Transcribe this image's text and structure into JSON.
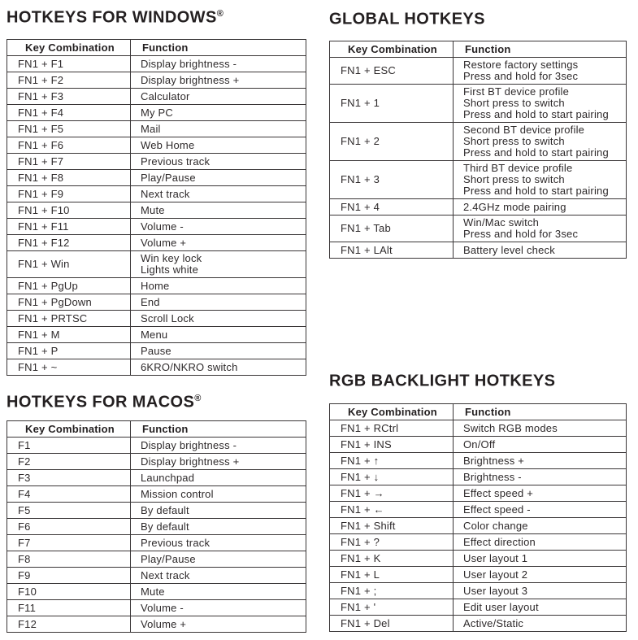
{
  "page": {
    "text_color": "#2e2a2b",
    "title_color": "#231f20",
    "border_color": "#3a3637",
    "background_color": "#ffffff"
  },
  "sections": [
    {
      "id": "windows",
      "title": "HOTKEYS FOR WINDOWS",
      "reg": "®",
      "columns": [
        "Key Combination",
        "Function"
      ],
      "rows": [
        {
          "key": "FN1 + F1",
          "fn": [
            "Display brightness -"
          ]
        },
        {
          "key": "FN1 + F2",
          "fn": [
            "Display brightness +"
          ]
        },
        {
          "key": "FN1 + F3",
          "fn": [
            "Calculator"
          ]
        },
        {
          "key": "FN1 + F4",
          "fn": [
            "My PC"
          ]
        },
        {
          "key": "FN1 + F5",
          "fn": [
            "Mail"
          ]
        },
        {
          "key": "FN1 + F6",
          "fn": [
            "Web Home"
          ]
        },
        {
          "key": "FN1 + F7",
          "fn": [
            "Previous track"
          ]
        },
        {
          "key": "FN1 + F8",
          "fn": [
            "Play/Pause"
          ]
        },
        {
          "key": "FN1 + F9",
          "fn": [
            "Next track"
          ]
        },
        {
          "key": "FN1 + F10",
          "fn": [
            "Mute"
          ]
        },
        {
          "key": "FN1 + F11",
          "fn": [
            "Volume -"
          ]
        },
        {
          "key": "FN1 + F12",
          "fn": [
            "Volume +"
          ]
        },
        {
          "key": "FN1 + Win",
          "fn": [
            "Win key lock",
            "Lights white"
          ]
        },
        {
          "key": "FN1 + PgUp",
          "fn": [
            "Home"
          ]
        },
        {
          "key": "FN1 + PgDown",
          "fn": [
            "End"
          ]
        },
        {
          "key": "FN1 + PRTSC",
          "fn": [
            "Scroll Lock"
          ]
        },
        {
          "key": "FN1 + M",
          "fn": [
            "Menu"
          ]
        },
        {
          "key": "FN1 + P",
          "fn": [
            "Pause"
          ]
        },
        {
          "key": "FN1 + ~",
          "fn": [
            "6KRO/NKRO switch"
          ]
        }
      ]
    },
    {
      "id": "global",
      "title": "GLOBAL HOTKEYS",
      "reg": "",
      "columns": [
        "Key Combination",
        "Function"
      ],
      "rows": [
        {
          "key": "FN1 + ESC",
          "fn": [
            "Restore factory settings",
            "Press and hold for 3sec"
          ]
        },
        {
          "key": "FN1 + 1",
          "fn": [
            "First BT device profile",
            "Short press to switch",
            "Press and hold to start pairing"
          ]
        },
        {
          "key": "FN1 + 2",
          "fn": [
            "Second BT device profile",
            "Short press to switch",
            "Press and hold to start pairing"
          ]
        },
        {
          "key": "FN1 + 3",
          "fn": [
            "Third BT device profile",
            "Short press to switch",
            "Press and hold to start pairing"
          ]
        },
        {
          "key": "FN1 + 4",
          "fn": [
            "2.4GHz mode pairing"
          ]
        },
        {
          "key": "FN1 + Tab",
          "fn": [
            "Win/Mac switch",
            "Press and hold for 3sec"
          ]
        },
        {
          "key": "FN1 + LAlt",
          "fn": [
            "Battery level check"
          ]
        }
      ]
    },
    {
      "id": "macos",
      "title": "HOTKEYS FOR MACOS",
      "reg": "®",
      "columns": [
        "Key Combination",
        "Function"
      ],
      "rows": [
        {
          "key": "F1",
          "fn": [
            "Display brightness -"
          ]
        },
        {
          "key": "F2",
          "fn": [
            "Display brightness +"
          ]
        },
        {
          "key": "F3",
          "fn": [
            "Launchpad"
          ]
        },
        {
          "key": "F4",
          "fn": [
            "Mission control"
          ]
        },
        {
          "key": "F5",
          "fn": [
            "By default"
          ]
        },
        {
          "key": "F6",
          "fn": [
            "By default"
          ]
        },
        {
          "key": "F7",
          "fn": [
            "Previous track"
          ]
        },
        {
          "key": "F8",
          "fn": [
            "Play/Pause"
          ]
        },
        {
          "key": "F9",
          "fn": [
            "Next track"
          ]
        },
        {
          "key": "F10",
          "fn": [
            "Mute"
          ]
        },
        {
          "key": "F11",
          "fn": [
            "Volume -"
          ]
        },
        {
          "key": "F12",
          "fn": [
            "Volume +"
          ]
        }
      ]
    },
    {
      "id": "rgb",
      "title": "RGB BACKLIGHT HOTKEYS",
      "reg": "",
      "columns": [
        "Key Combination",
        "Function"
      ],
      "rows": [
        {
          "key": "FN1 + RCtrl",
          "fn": [
            "Switch RGB modes"
          ]
        },
        {
          "key": "FN1 + INS",
          "fn": [
            "On/Off"
          ]
        },
        {
          "key": "FN1 + ↑",
          "fn": [
            "Brightness +"
          ]
        },
        {
          "key": "FN1 + ↓",
          "fn": [
            "Brightness -"
          ]
        },
        {
          "key": "FN1 + →",
          "fn": [
            "Effect speed +"
          ]
        },
        {
          "key": "FN1 + ←",
          "fn": [
            "Effect speed -"
          ]
        },
        {
          "key": "FN1 + Shift",
          "fn": [
            "Color change"
          ]
        },
        {
          "key": "FN1 + ?",
          "fn": [
            "Effect direction"
          ]
        },
        {
          "key": "FN1 + K",
          "fn": [
            "User layout 1"
          ]
        },
        {
          "key": "FN1 + L",
          "fn": [
            "User layout 2"
          ]
        },
        {
          "key": "FN1 + ;",
          "fn": [
            "User layout 3"
          ]
        },
        {
          "key": "FN1 + '",
          "fn": [
            "Edit user layout"
          ]
        },
        {
          "key": "FN1 + Del",
          "fn": [
            "Active/Static"
          ]
        }
      ]
    }
  ]
}
